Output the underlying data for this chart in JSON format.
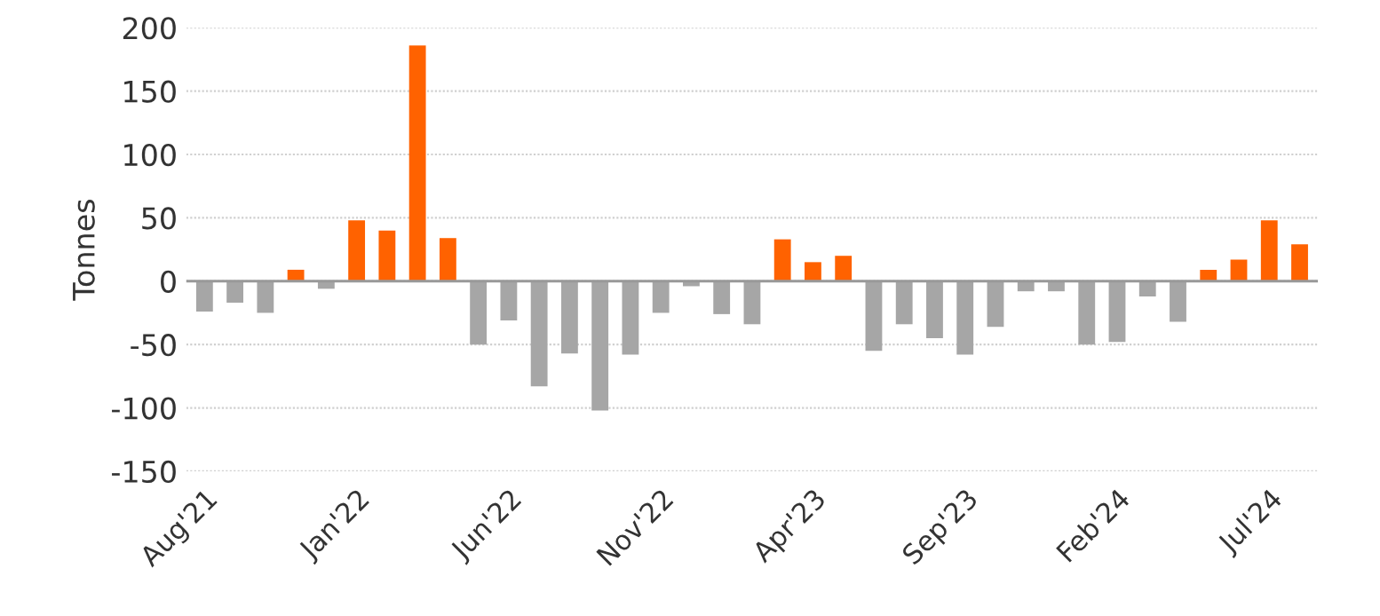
{
  "chart_data": {
    "type": "bar",
    "ylabel": "Tonnes",
    "categories": [
      "Aug'21",
      null,
      null,
      null,
      null,
      "Jan'22",
      null,
      null,
      null,
      null,
      "Jun'22",
      null,
      null,
      null,
      null,
      "Nov'22",
      null,
      null,
      null,
      null,
      "Apr'23",
      null,
      null,
      null,
      null,
      "Sep'23",
      null,
      null,
      null,
      null,
      "Feb'24",
      null,
      null,
      null,
      null,
      "Jul'24",
      null
    ],
    "values": [
      -24,
      -17,
      -25,
      9,
      -6,
      48,
      40,
      186,
      34,
      -50,
      -31,
      -83,
      -57,
      -102,
      -58,
      -25,
      -4,
      -26,
      -34,
      33,
      15,
      20,
      -55,
      -34,
      -45,
      -58,
      -36,
      -8,
      -8,
      -50,
      -48,
      -12,
      -32,
      9,
      17,
      48,
      29
    ],
    "colors": [
      "#a6a6a6",
      "#a6a6a6",
      "#a6a6a6",
      "#ff6200",
      "#a6a6a6",
      "#ff6200",
      "#ff6200",
      "#ff6200",
      "#ff6200",
      "#a6a6a6",
      "#a6a6a6",
      "#a6a6a6",
      "#a6a6a6",
      "#a6a6a6",
      "#a6a6a6",
      "#a6a6a6",
      "#a6a6a6",
      "#a6a6a6",
      "#a6a6a6",
      "#ff6200",
      "#ff6200",
      "#ff6200",
      "#a6a6a6",
      "#a6a6a6",
      "#a6a6a6",
      "#a6a6a6",
      "#a6a6a6",
      "#a6a6a6",
      "#a6a6a6",
      "#a6a6a6",
      "#a6a6a6",
      "#a6a6a6",
      "#a6a6a6",
      "#ff6200",
      "#ff6200",
      "#ff6200",
      "#ff6200"
    ],
    "ylim": [
      -150,
      200
    ],
    "yticks": [
      -150,
      -100,
      -50,
      0,
      50,
      100,
      150,
      200
    ],
    "grid": "y"
  }
}
